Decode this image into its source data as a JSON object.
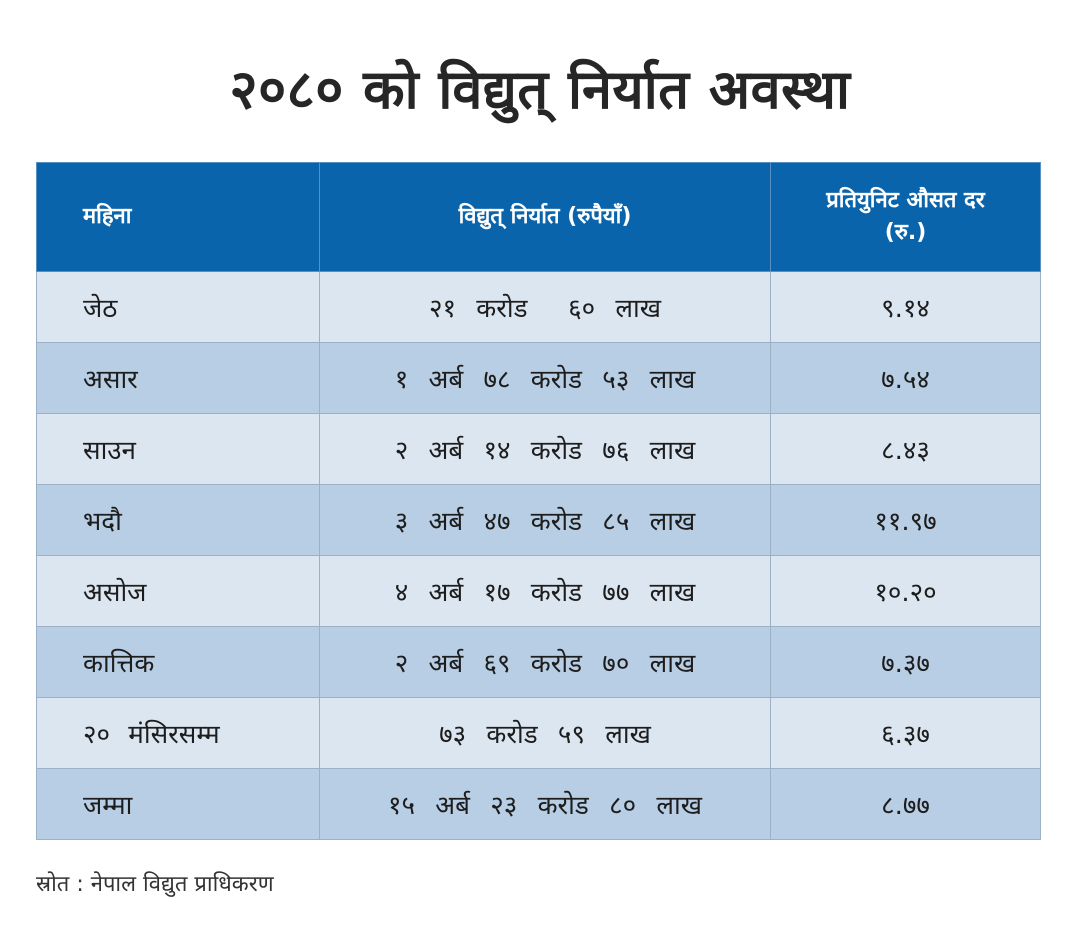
{
  "title": "२०८० को विद्युत् निर्यात अवस्था",
  "table": {
    "headers": {
      "month": "महिना",
      "export": "विद्युत् निर्यात (रुपैयाँ)",
      "rate": "प्रतियुनिट औसत दर (रु.)"
    },
    "rows": [
      {
        "month": "जेठ",
        "export": "२१ करोड  ६० लाख",
        "rate": "९.१४"
      },
      {
        "month": "असार",
        "export": "१ अर्ब ७८ करोड ५३ लाख",
        "rate": "७.५४"
      },
      {
        "month": "साउन",
        "export": "२ अर्ब १४ करोड ७६ लाख",
        "rate": "८.४३"
      },
      {
        "month": "भदौ",
        "export": "३ अर्ब ४७ करोड ८५ लाख",
        "rate": "११.९७"
      },
      {
        "month": "असोज",
        "export": "४ अर्ब १७ करोड ७७ लाख",
        "rate": "१०.२०"
      },
      {
        "month": "कात्तिक",
        "export": "२ अर्ब ६९ करोड ७० लाख",
        "rate": "७.३७"
      },
      {
        "month": "२० मंसिरसम्म",
        "export": "७३ करोड ५९ लाख",
        "rate": "६.३७"
      },
      {
        "month": "जम्मा",
        "export": "१५ अर्ब २३ करोड ८० लाख",
        "rate": "८.७७"
      }
    ]
  },
  "source": "स्रोत : नेपाल विद्युत प्राधिकरण",
  "colors": {
    "header_bg": "#0a64ab",
    "row_light": "#dce6f1",
    "row_dark": "#b8cee4",
    "title_text": "#262626"
  }
}
